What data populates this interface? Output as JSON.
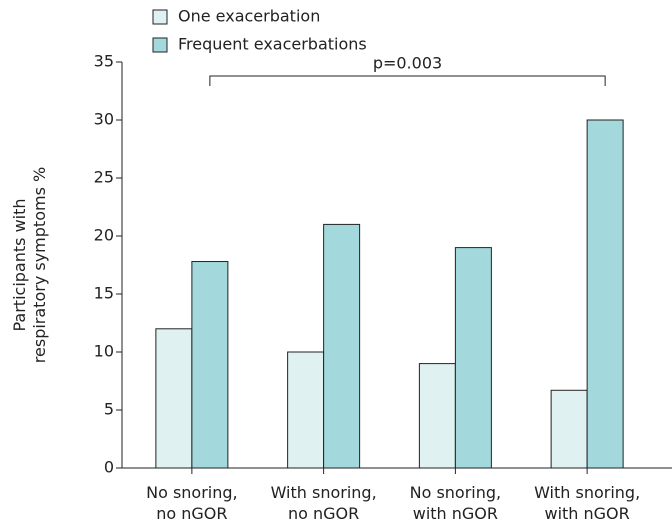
{
  "chart_data": {
    "type": "bar",
    "y_label": [
      "Participants with",
      "respiratory symptoms %"
    ],
    "categories": [
      [
        "No snoring,",
        "no nGOR"
      ],
      [
        "With snoring,",
        "no nGOR"
      ],
      [
        "No snoring,",
        "with nGOR"
      ],
      [
        "With snoring,",
        "with nGOR"
      ]
    ],
    "series": [
      {
        "name": "One exacerbation",
        "color": "#e0f1f1",
        "values": [
          12,
          10,
          9,
          6.7
        ]
      },
      {
        "name": "Frequent exacerbations",
        "color": "#a3d9dc",
        "values": [
          17.8,
          21,
          19,
          30
        ]
      }
    ],
    "annotation": "p=0.003",
    "ylim": [
      0,
      35
    ],
    "yticks": [
      0,
      5,
      10,
      15,
      20,
      25,
      30,
      35
    ]
  }
}
